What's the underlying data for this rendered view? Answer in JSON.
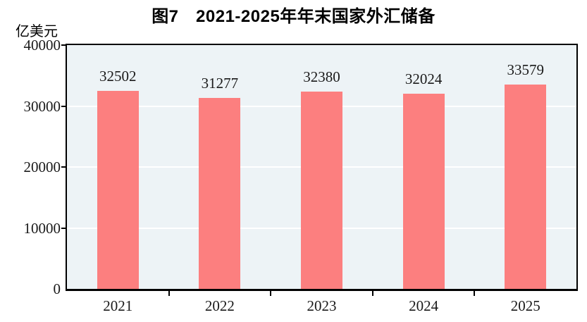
{
  "chart_data": {
    "type": "bar",
    "title": "图7　2021-2025年年末国家外汇储备",
    "ylabel": "亿美元",
    "xlabel": "",
    "categories": [
      "2021",
      "2022",
      "2023",
      "2024",
      "2025"
    ],
    "values": [
      32502,
      31277,
      32380,
      32024,
      33579
    ],
    "ylim": [
      0,
      40000
    ],
    "yticks": [
      0,
      10000,
      20000,
      30000,
      40000
    ],
    "grid": "horizontal",
    "legend_position": "none",
    "colors": {
      "bar": "#fc7f7f",
      "plot_background": "#edf3f6",
      "gridline": "#ffffff",
      "axis": "#000000",
      "text": "#1a1a1a",
      "page_background": "#ffffff"
    }
  }
}
